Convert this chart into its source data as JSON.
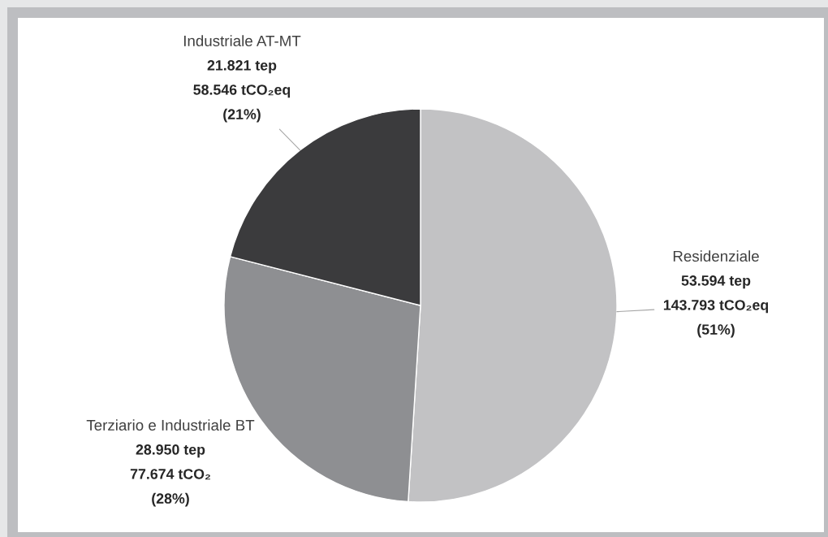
{
  "chart_data": {
    "type": "pie",
    "categories": [
      "Residenziale",
      "Terziario e Industriale BT",
      "Industriale AT-MT"
    ],
    "values": [
      51,
      28,
      21
    ],
    "colors": [
      "#c2c2c4",
      "#8e8f92",
      "#3b3b3d"
    ],
    "value_labels": [
      "53.594 tep\n143.793 tCO₂eq\n(51%)",
      "28.950 tep\n77.674 tCO₂\n(28%)",
      "21.821 tep\n58.546 tCO₂eq\n(21%)"
    ]
  }
}
